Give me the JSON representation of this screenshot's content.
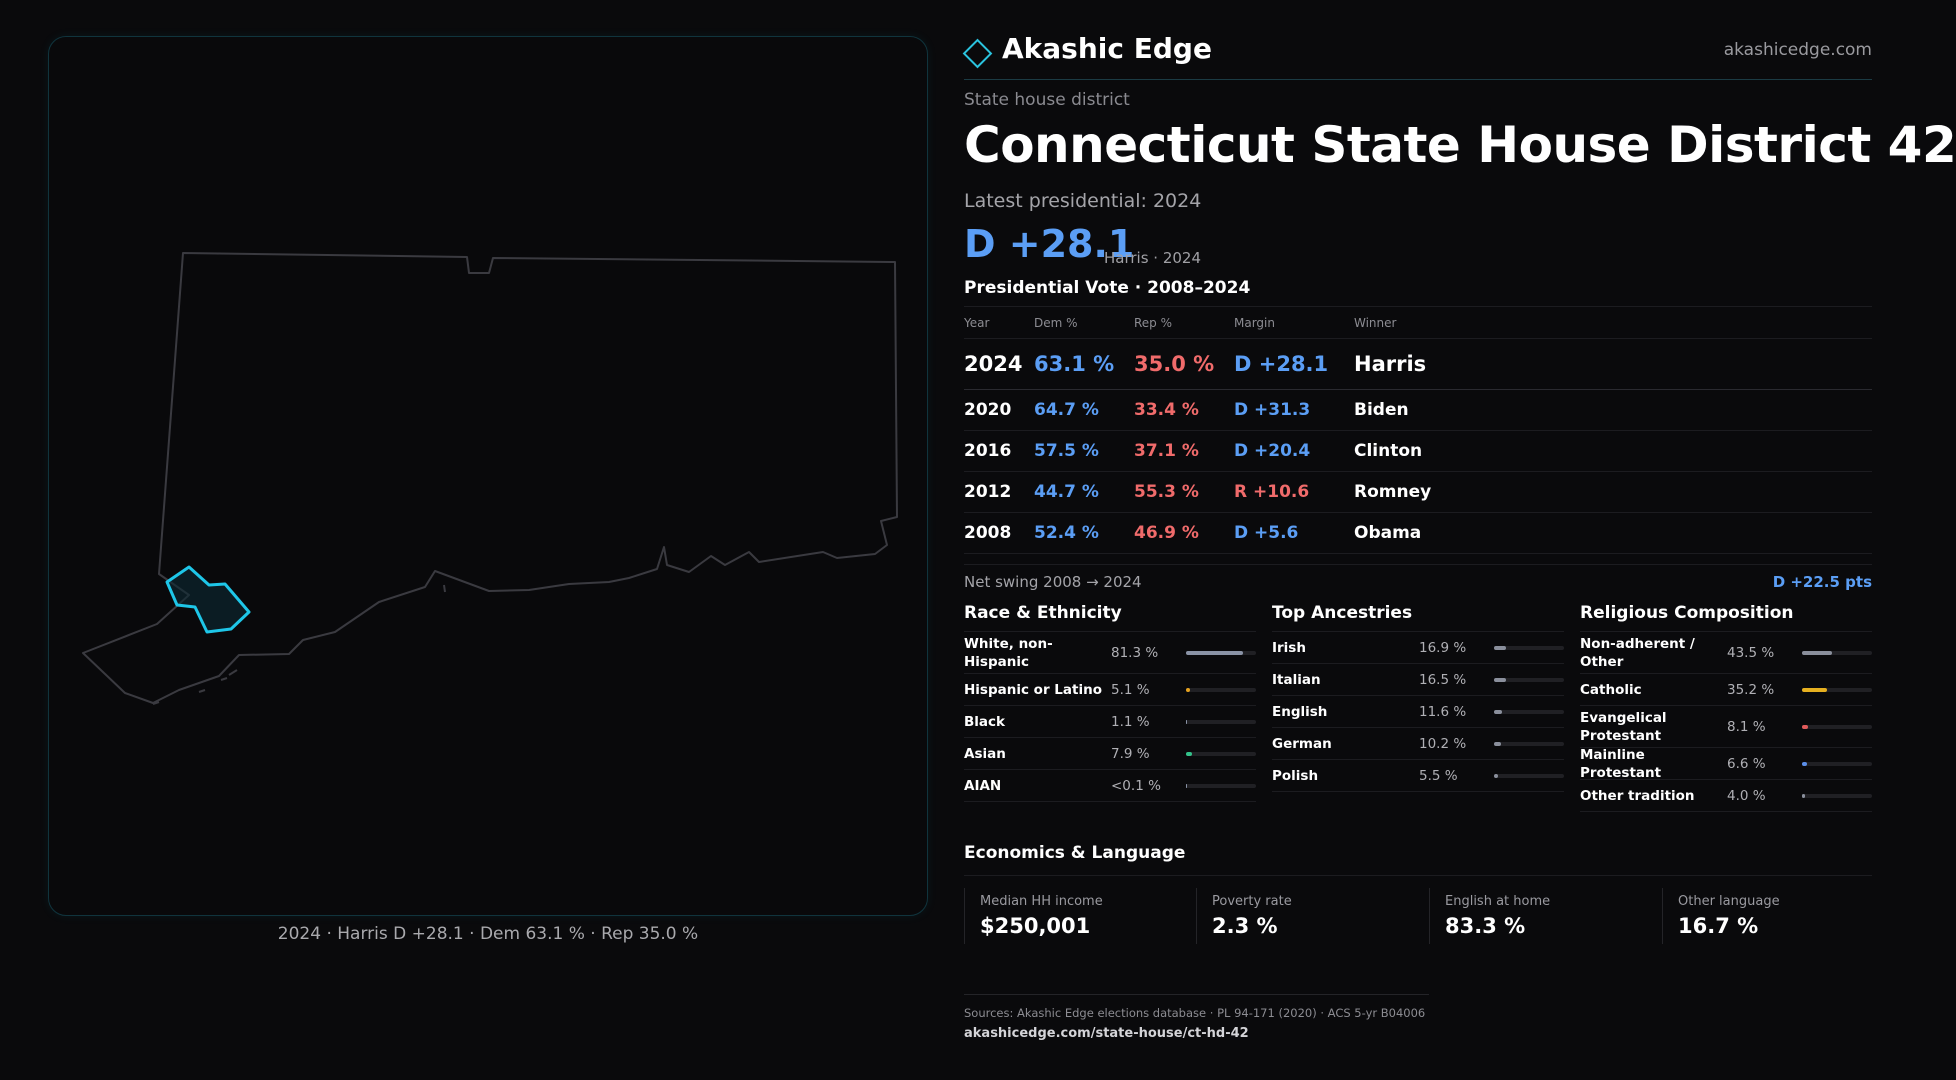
{
  "map_caption": "2024 · Harris D +28.1 · Dem 63.1 % · Rep 35.0 %",
  "brand": {
    "name": "Akashic Edge",
    "url": "akashicedge.com",
    "icon": "diamond-icon",
    "accent": "#2bc4df"
  },
  "district": {
    "kicker": "State house district",
    "title": "Connecticut State House District 42",
    "latest_label": "Latest presidential: 2024",
    "margin": "D +28.1",
    "margin_sub": "Harris · 2024"
  },
  "vote_table": {
    "heading": "Presidential Vote · 2008–2024",
    "headers": {
      "year": "Year",
      "dem": "Dem %",
      "rep": "Rep %",
      "margin": "Margin",
      "winner": "Winner"
    },
    "rows": [
      {
        "year": "2024",
        "dem": "63.1 %",
        "rep": "35.0 %",
        "margin": "D +28.1",
        "winner": "Harris",
        "party": "D"
      },
      {
        "year": "2020",
        "dem": "64.7 %",
        "rep": "33.4 %",
        "margin": "D +31.3",
        "winner": "Biden",
        "party": "D"
      },
      {
        "year": "2016",
        "dem": "57.5 %",
        "rep": "37.1 %",
        "margin": "D +20.4",
        "winner": "Clinton",
        "party": "D"
      },
      {
        "year": "2012",
        "dem": "44.7 %",
        "rep": "55.3 %",
        "margin": "R +10.6",
        "winner": "Romney",
        "party": "R"
      },
      {
        "year": "2008",
        "dem": "52.4 %",
        "rep": "46.9 %",
        "margin": "D +5.6",
        "winner": "Obama",
        "party": "D"
      }
    ]
  },
  "swing": {
    "label": "Net swing 2008 → 2024",
    "value": "D +22.5 pts"
  },
  "race": {
    "title": "Race & Ethnicity",
    "items": [
      {
        "label": "White, non-Hispanic",
        "pct": "81.3 %",
        "value": 81.3,
        "color": "#8a93a6"
      },
      {
        "label": "Hispanic or Latino",
        "pct": "5.1 %",
        "value": 5.1,
        "color": "#e6a21f"
      },
      {
        "label": "Black",
        "pct": "1.1 %",
        "value": 1.1,
        "color": "#8a93a6"
      },
      {
        "label": "Asian",
        "pct": "7.9 %",
        "value": 7.9,
        "color": "#33c28a"
      },
      {
        "label": "AIAN",
        "pct": "<0.1 %",
        "value": 0.05,
        "color": "#8a93a6"
      }
    ]
  },
  "ancestries": {
    "title": "Top Ancestries",
    "items": [
      {
        "label": "Irish",
        "pct": "16.9 %",
        "value": 16.9,
        "color": "#8a8f9c"
      },
      {
        "label": "Italian",
        "pct": "16.5 %",
        "value": 16.5,
        "color": "#8a8f9c"
      },
      {
        "label": "English",
        "pct": "11.6 %",
        "value": 11.6,
        "color": "#8a8f9c"
      },
      {
        "label": "German",
        "pct": "10.2 %",
        "value": 10.2,
        "color": "#8a8f9c"
      },
      {
        "label": "Polish",
        "pct": "5.5 %",
        "value": 5.5,
        "color": "#8a8f9c"
      }
    ]
  },
  "religion": {
    "title": "Religious Composition",
    "items": [
      {
        "label": "Non-adherent / Other",
        "pct": "43.5 %",
        "value": 43.5,
        "color": "#8a8f9c"
      },
      {
        "label": "Catholic",
        "pct": "35.2 %",
        "value": 35.2,
        "color": "#e6b020"
      },
      {
        "label": "Evangelical Protestant",
        "pct": "8.1 %",
        "value": 8.1,
        "color": "#e05a5a"
      },
      {
        "label": "Mainline Protestant",
        "pct": "6.6 %",
        "value": 6.6,
        "color": "#5b8ee8"
      },
      {
        "label": "Other tradition",
        "pct": "4.0 %",
        "value": 4.0,
        "color": "#8a8f9c"
      }
    ]
  },
  "economics": {
    "title": "Economics & Language",
    "cards": [
      {
        "label": "Median HH income",
        "value": "$250,001"
      },
      {
        "label": "Poverty rate",
        "value": "2.3 %"
      },
      {
        "label": "English at home",
        "value": "83.3 %"
      },
      {
        "label": "Other language",
        "value": "16.7 %"
      }
    ]
  },
  "sources": {
    "line1": "Sources: Akashic Edge elections database · PL 94-171 (2020) · ACS 5-yr B04006",
    "line2": "akashicedge.com/state-house/ct-hd-42"
  },
  "colors": {
    "dem": "#5b9ef5",
    "rep": "#f06b6b",
    "district_highlight": "#1ec6e8",
    "state_outline": "#3a3a40"
  }
}
